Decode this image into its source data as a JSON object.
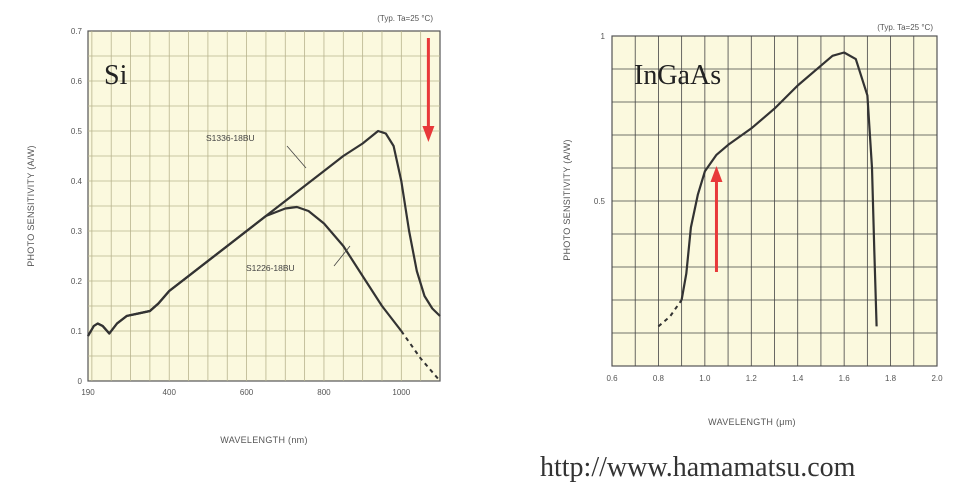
{
  "chart_data": [
    {
      "type": "line",
      "plot_label": "Si",
      "condition_note": "(Typ. Ta=25 °C)",
      "xlabel": "WAVELENGTH (nm)",
      "ylabel": "PHOTO SENSITIVITY (A/W)",
      "xlim": [
        190,
        1100
      ],
      "ylim": [
        0,
        0.7
      ],
      "xticks": [
        "190",
        "400",
        "600",
        "800",
        "1000"
      ],
      "yticks": [
        "0",
        "0.1",
        "0.2",
        "0.3",
        "0.4",
        "0.5",
        "0.6",
        "0.7"
      ],
      "grid": true,
      "series": [
        {
          "name": "S1336-18BU",
          "points": [
            [
              190,
              0.09
            ],
            [
              205,
              0.11
            ],
            [
              215,
              0.115
            ],
            [
              228,
              0.11
            ],
            [
              245,
              0.095
            ],
            [
              265,
              0.115
            ],
            [
              290,
              0.13
            ],
            [
              320,
              0.135
            ],
            [
              350,
              0.14
            ],
            [
              372,
              0.155
            ],
            [
              400,
              0.18
            ],
            [
              450,
              0.21
            ],
            [
              500,
              0.24
            ],
            [
              550,
              0.27
            ],
            [
              600,
              0.3
            ],
            [
              650,
              0.33
            ],
            [
              700,
              0.36
            ],
            [
              750,
              0.39
            ],
            [
              800,
              0.42
            ],
            [
              850,
              0.45
            ],
            [
              900,
              0.475
            ],
            [
              940,
              0.5
            ],
            [
              960,
              0.495
            ],
            [
              980,
              0.47
            ],
            [
              1000,
              0.4
            ],
            [
              1020,
              0.3
            ],
            [
              1040,
              0.22
            ],
            [
              1060,
              0.17
            ],
            [
              1080,
              0.145
            ],
            [
              1100,
              0.13
            ]
          ]
        },
        {
          "name": "S1226-18BU",
          "points": [
            [
              190,
              0.09
            ],
            [
              205,
              0.11
            ],
            [
              215,
              0.115
            ],
            [
              228,
              0.11
            ],
            [
              245,
              0.095
            ],
            [
              265,
              0.115
            ],
            [
              290,
              0.13
            ],
            [
              320,
              0.135
            ],
            [
              350,
              0.14
            ],
            [
              372,
              0.155
            ],
            [
              400,
              0.18
            ],
            [
              450,
              0.21
            ],
            [
              500,
              0.24
            ],
            [
              550,
              0.27
            ],
            [
              600,
              0.3
            ],
            [
              650,
              0.33
            ],
            [
              700,
              0.345
            ],
            [
              730,
              0.348
            ],
            [
              760,
              0.34
            ],
            [
              800,
              0.315
            ],
            [
              850,
              0.27
            ],
            [
              900,
              0.21
            ],
            [
              950,
              0.15
            ],
            [
              1000,
              0.1
            ],
            [
              1050,
              0.045
            ],
            [
              1100,
              0.0
            ]
          ],
          "dashed_from": 1000
        }
      ],
      "annotation_arrow": {
        "direction": "down",
        "color": "#e8393a",
        "x_at": 1070
      }
    },
    {
      "type": "line",
      "plot_label": "InGaAs",
      "condition_note": "(Typ. Ta=25 °C)",
      "xlabel": "WAVELENGTH (μm)",
      "ylabel": "PHOTO SENSITIVITY (A/W)",
      "xlim": [
        0.6,
        2.0
      ],
      "ylim": [
        0,
        1.0
      ],
      "xticks": [
        "0.6",
        "0.8",
        "1.0",
        "1.2",
        "1.4",
        "1.6",
        "1.8",
        "2.0"
      ],
      "yticks": [
        "0.5",
        "1"
      ],
      "grid": true,
      "series": [
        {
          "name": "",
          "points": [
            [
              0.8,
              0.12
            ],
            [
              0.85,
              0.15
            ],
            [
              0.9,
              0.2
            ],
            [
              0.92,
              0.28
            ],
            [
              0.94,
              0.42
            ],
            [
              0.97,
              0.52
            ],
            [
              1.0,
              0.59
            ],
            [
              1.05,
              0.64
            ],
            [
              1.1,
              0.67
            ],
            [
              1.2,
              0.72
            ],
            [
              1.3,
              0.78
            ],
            [
              1.4,
              0.85
            ],
            [
              1.5,
              0.91
            ],
            [
              1.55,
              0.94
            ],
            [
              1.6,
              0.95
            ],
            [
              1.65,
              0.93
            ],
            [
              1.7,
              0.82
            ],
            [
              1.72,
              0.6
            ],
            [
              1.73,
              0.35
            ],
            [
              1.74,
              0.12
            ]
          ],
          "dashed_until": 0.9
        }
      ],
      "annotation_arrow": {
        "direction": "up",
        "color": "#e8393a",
        "x_at": 1.05
      }
    }
  ],
  "footer": {
    "url": "http://www.hamamatsu.com"
  }
}
